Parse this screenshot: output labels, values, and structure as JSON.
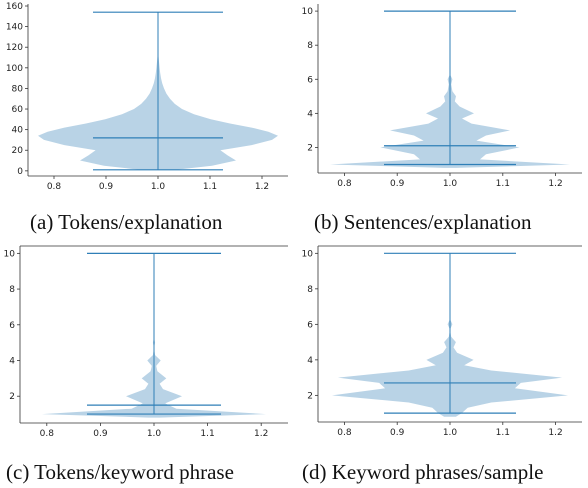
{
  "chart_data": [
    {
      "type": "violin",
      "caption": "(a) Tokens/explanation",
      "title": "",
      "xlabel": "",
      "ylabel": "",
      "xlim": [
        0.75,
        1.25
      ],
      "ylim": [
        -5,
        160
      ],
      "xticks": [
        "0.8",
        "0.9",
        "1.0",
        "1.1",
        "1.2"
      ],
      "yticks": [
        "0",
        "20",
        "40",
        "60",
        "80",
        "100",
        "120",
        "140",
        "160"
      ],
      "position": 1.0,
      "stats": {
        "min": 1,
        "max": 154,
        "mean": 32
      },
      "density_profile": [
        [
          1,
          0.15
        ],
        [
          5,
          0.45
        ],
        [
          10,
          0.65
        ],
        [
          15,
          0.58
        ],
        [
          20,
          0.52
        ],
        [
          25,
          0.78
        ],
        [
          30,
          0.95
        ],
        [
          34,
          1.0
        ],
        [
          38,
          0.92
        ],
        [
          42,
          0.78
        ],
        [
          46,
          0.6
        ],
        [
          50,
          0.44
        ],
        [
          55,
          0.3
        ],
        [
          60,
          0.2
        ],
        [
          65,
          0.14
        ],
        [
          70,
          0.1
        ],
        [
          75,
          0.07
        ],
        [
          80,
          0.05
        ],
        [
          85,
          0.035
        ],
        [
          90,
          0.025
        ],
        [
          95,
          0.018
        ],
        [
          100,
          0.013
        ],
        [
          105,
          0.009
        ],
        [
          110,
          0.005
        ],
        [
          115,
          0.002
        ],
        [
          120,
          0.0
        ]
      ],
      "grid": false,
      "legend": "none",
      "color": "#b9d3e6",
      "line_color": "#2f7fb7"
    },
    {
      "type": "violin",
      "caption": "(b) Sentences/explanation",
      "title": "",
      "xlabel": "",
      "ylabel": "",
      "xlim": [
        0.75,
        1.25
      ],
      "ylim": [
        0.5,
        10.3
      ],
      "xticks": [
        "0.8",
        "0.9",
        "1.0",
        "1.1",
        "1.2"
      ],
      "yticks": [
        "2",
        "4",
        "6",
        "8",
        "10"
      ],
      "position": 1.0,
      "stats": {
        "min": 1,
        "max": 10,
        "mean": 2.1
      },
      "density_profile": [
        [
          0.8,
          0.05
        ],
        [
          1,
          1.0
        ],
        [
          1.3,
          0.25
        ],
        [
          1.6,
          0.3
        ],
        [
          2,
          0.58
        ],
        [
          2.4,
          0.22
        ],
        [
          2.7,
          0.3
        ],
        [
          3,
          0.5
        ],
        [
          3.4,
          0.18
        ],
        [
          3.7,
          0.1
        ],
        [
          4,
          0.2
        ],
        [
          4.4,
          0.08
        ],
        [
          4.7,
          0.04
        ],
        [
          5,
          0.05
        ],
        [
          5.3,
          0.02
        ],
        [
          5.7,
          0.01
        ],
        [
          6,
          0.02
        ],
        [
          6.3,
          0.0
        ]
      ],
      "grid": false,
      "legend": "none",
      "color": "#b9d3e6",
      "line_color": "#2f7fb7"
    },
    {
      "type": "violin",
      "caption": "(c) Tokens/keyword phrase",
      "title": "",
      "xlabel": "",
      "ylabel": "",
      "xlim": [
        0.75,
        1.25
      ],
      "ylim": [
        0.5,
        10.3
      ],
      "xticks": [
        "0.8",
        "0.9",
        "1.0",
        "1.1",
        "1.2"
      ],
      "yticks": [
        "2",
        "4",
        "6",
        "8",
        "10"
      ],
      "position": 1.0,
      "stats": {
        "min": 1,
        "max": 10,
        "mean": 1.5
      },
      "density_profile": [
        [
          0.8,
          0.05
        ],
        [
          1,
          1.0
        ],
        [
          1.3,
          0.2
        ],
        [
          1.6,
          0.1
        ],
        [
          2,
          0.25
        ],
        [
          2.4,
          0.08
        ],
        [
          2.7,
          0.05
        ],
        [
          3,
          0.11
        ],
        [
          3.4,
          0.03
        ],
        [
          3.7,
          0.02
        ],
        [
          4,
          0.06
        ],
        [
          4.3,
          0.01
        ],
        [
          4.7,
          0.0
        ],
        [
          5,
          0.01
        ],
        [
          5.3,
          0.0
        ]
      ],
      "grid": false,
      "legend": "none",
      "color": "#b9d3e6",
      "line_color": "#2f7fb7"
    },
    {
      "type": "violin",
      "caption": "(d) Keyword phrases/sample",
      "title": "",
      "xlabel": "",
      "ylabel": "",
      "xlim": [
        0.75,
        1.25
      ],
      "ylim": [
        0.5,
        10.3
      ],
      "xticks": [
        "0.8",
        "0.9",
        "1.0",
        "1.1",
        "1.2"
      ],
      "yticks": [
        "2",
        "4",
        "6",
        "8",
        "10"
      ],
      "position": 1.0,
      "stats": {
        "min": 1,
        "max": 10,
        "mean": 2.7
      },
      "density_profile": [
        [
          0.8,
          0.05
        ],
        [
          1,
          0.1
        ],
        [
          1.3,
          0.15
        ],
        [
          1.6,
          0.35
        ],
        [
          2,
          1.0
        ],
        [
          2.4,
          0.55
        ],
        [
          2.7,
          0.6
        ],
        [
          3,
          0.95
        ],
        [
          3.4,
          0.35
        ],
        [
          3.7,
          0.12
        ],
        [
          4,
          0.2
        ],
        [
          4.4,
          0.06
        ],
        [
          4.7,
          0.03
        ],
        [
          5,
          0.05
        ],
        [
          5.3,
          0.01
        ],
        [
          5.7,
          0.0
        ],
        [
          6,
          0.02
        ],
        [
          6.3,
          0.0
        ]
      ],
      "grid": false,
      "legend": "none",
      "color": "#b9d3e6",
      "line_color": "#2f7fb7"
    }
  ]
}
